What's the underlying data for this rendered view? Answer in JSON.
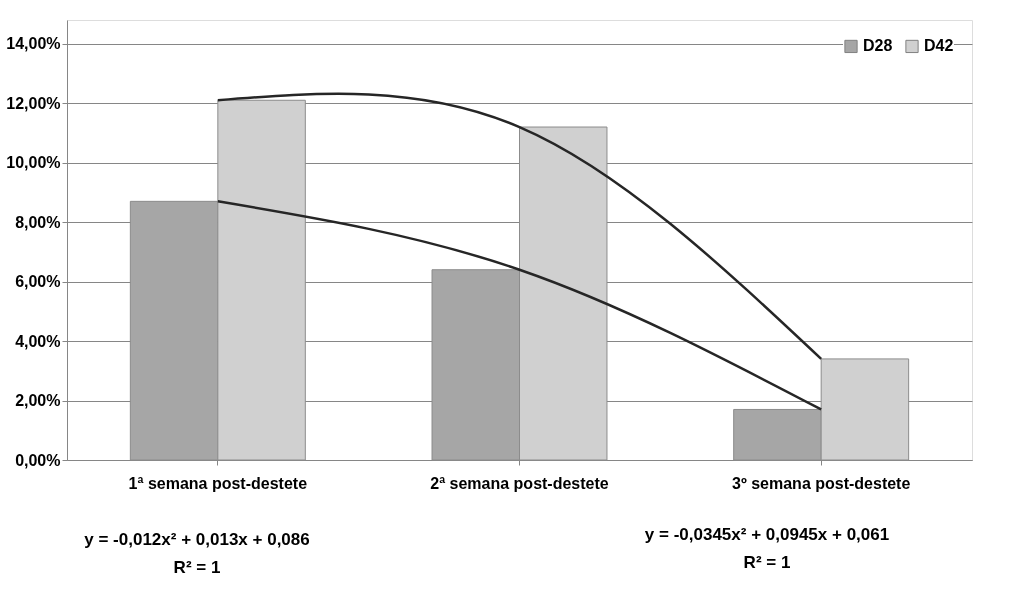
{
  "chart_data": {
    "type": "bar",
    "categories": [
      "1ª semana post-destete",
      "2ª semana post-destete",
      "3º semana post-destete"
    ],
    "series": [
      {
        "name": "D28",
        "color": "#a6a6a6",
        "values": [
          8.7,
          6.4,
          1.7
        ]
      },
      {
        "name": "D42",
        "color": "#d0d0d0",
        "values": [
          12.1,
          11.2,
          3.4
        ]
      },
      {
        "type": "line",
        "color": "#262626",
        "values": [
          8.7,
          6.4,
          1.7
        ]
      },
      {
        "type": "line",
        "color": "#262626",
        "values": [
          12.1,
          11.2,
          3.4
        ]
      }
    ],
    "ylim": [
      0,
      14.8
    ],
    "yticks": [
      {
        "value": 0,
        "label": "0,00%"
      },
      {
        "value": 2,
        "label": "2,00%"
      },
      {
        "value": 4,
        "label": "4,00%"
      },
      {
        "value": 6,
        "label": "6,00%"
      },
      {
        "value": 8,
        "label": "8,00%"
      },
      {
        "value": 10,
        "label": "10,00%"
      },
      {
        "value": 12,
        "label": "12,00%"
      },
      {
        "value": 14,
        "label": "14,00%"
      }
    ],
    "grid": "y",
    "legend": "top right",
    "annotations": [
      "y = -0,012x² + 0,013x + 0,086",
      "R² = 1",
      "y = -0,0345x² + 0,0945x + 0,061",
      "R² = 1"
    ]
  }
}
